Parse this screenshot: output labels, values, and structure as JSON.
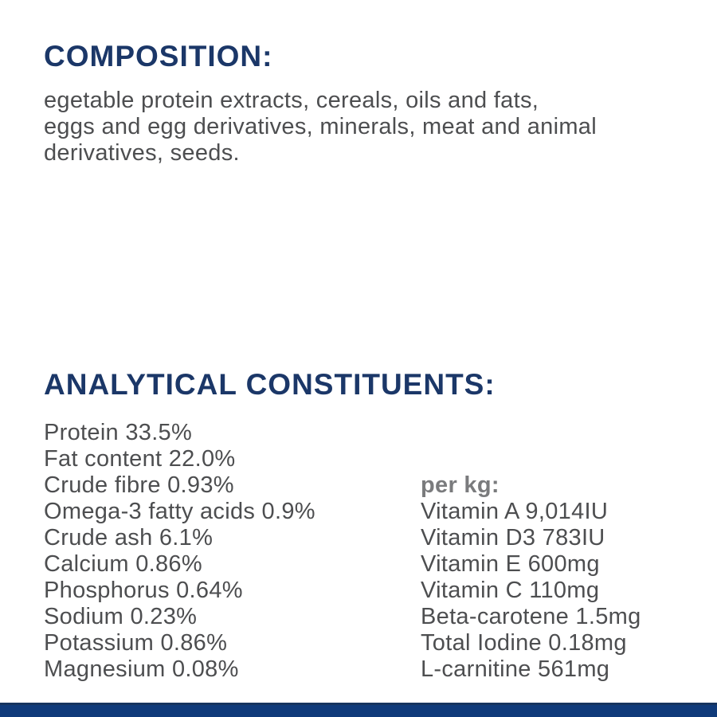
{
  "colors": {
    "heading_navy": "#1b3768",
    "body_gray": "#4d4e50",
    "per_kg_gray": "#7a7b7d",
    "bottom_bar_navy": "#0f3a7a",
    "bottom_bar_edge": "#16345f",
    "background": "#ffffff"
  },
  "composition": {
    "heading": "COMPOSITION:",
    "lines": [
      "egetable protein extracts, cereals, oils and fats,",
      "eggs and egg derivatives, minerals, meat and animal",
      "derivatives, seeds."
    ]
  },
  "analytical": {
    "heading": "ANALYTICAL CONSTITUENTS:",
    "left_items": [
      "Protein 33.5%",
      "Fat content 22.0%",
      "Crude fibre 0.93%",
      "Omega-3 fatty acids 0.9%",
      "Crude ash 6.1%",
      "Calcium 0.86%",
      "Phosphorus 0.64%",
      "Sodium 0.23%",
      "Potassium 0.86%",
      "Magnesium 0.08%"
    ],
    "per_kg_header": "per kg:",
    "per_kg_items": [
      "Vitamin A 9,014IU",
      "Vitamin D3 783IU",
      "Vitamin E 600mg",
      "Vitamin C 110mg",
      "Beta-carotene 1.5mg",
      "Total Iodine 0.18mg",
      "L-carnitine 561mg"
    ]
  }
}
